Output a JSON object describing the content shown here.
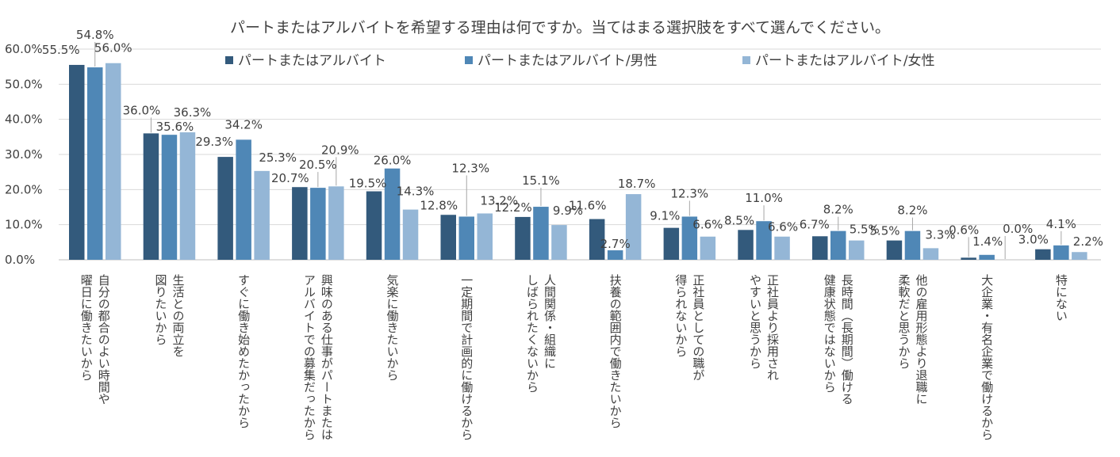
{
  "chart_data": {
    "type": "bar",
    "title": "パートまたはアルバイトを希望する理由は何ですか。当てはまる選択肢をすべて選んでください。",
    "ylim": [
      0,
      60
    ],
    "yticks": [
      "0.0%",
      "10.0%",
      "20.0%",
      "30.0%",
      "40.0%",
      "50.0%",
      "60.0%"
    ],
    "grid": true,
    "legend_position": "top",
    "categories": [
      [
        "曜日に働きたいから",
        "自分の都合のよい時間や"
      ],
      [
        "図りたいから",
        "生活との両立を"
      ],
      [
        "すぐに働き始めたかったから"
      ],
      [
        "アルバイトでの募集だったから",
        "興味のある仕事がパートまたは"
      ],
      [
        "気楽に働きたいから"
      ],
      [
        "一定期間で計画的に働けるから"
      ],
      [
        "しばられたくないから",
        "人間関係・組織に"
      ],
      [
        "扶養の範囲内で働きたいから"
      ],
      [
        "得られないから",
        "正社員としての職が"
      ],
      [
        "やすいと思うから",
        "正社員より採用され"
      ],
      [
        "健康状態ではないから",
        "長時間（長期間）働ける"
      ],
      [
        "柔軟だと思うから",
        "他の雇用形態より退職に"
      ],
      [
        "大企業・有名企業で働けるから"
      ],
      [
        "特にない"
      ]
    ],
    "series": [
      {
        "name": "パートまたはアルバイト",
        "color": "#335a7c",
        "values": [
          55.5,
          36.0,
          29.3,
          20.7,
          19.5,
          12.8,
          12.2,
          11.6,
          9.1,
          8.5,
          6.7,
          5.5,
          0.6,
          3.0
        ],
        "labels": [
          "55.5%",
          "36.0%",
          "29.3%",
          "20.7%",
          "19.5%",
          "12.8%",
          "12.2%",
          "11.6%",
          "9.1%",
          "8.5%",
          "6.7%",
          "5.5%",
          "0.6%",
          "3.0%"
        ]
      },
      {
        "name": "パートまたはアルバイト/男性",
        "color": "#4f87b6",
        "values": [
          54.8,
          35.6,
          34.2,
          20.5,
          26.0,
          12.3,
          15.1,
          2.7,
          12.3,
          11.0,
          8.2,
          8.2,
          1.4,
          4.1
        ],
        "labels": [
          "54.8%",
          "35.6%",
          "34.2%",
          "20.5%",
          "26.0%",
          "12.3%",
          "15.1%",
          "2.7%",
          "12.3%",
          "11.0%",
          "8.2%",
          "8.2%",
          "1.4%",
          "4.1%"
        ]
      },
      {
        "name": "パートまたはアルバイト/女性",
        "color": "#94b6d6",
        "values": [
          56.0,
          36.3,
          25.3,
          20.9,
          14.3,
          13.2,
          9.9,
          18.7,
          6.6,
          6.6,
          5.5,
          3.3,
          0.0,
          2.2
        ],
        "labels": [
          "56.0%",
          "36.3%",
          "25.3%",
          "20.9%",
          "14.3%",
          "13.2%",
          "9.9%",
          "18.7%",
          "6.6%",
          "6.6%",
          "5.5%",
          "3.3%",
          "0.0%",
          "2.2%"
        ]
      }
    ]
  }
}
